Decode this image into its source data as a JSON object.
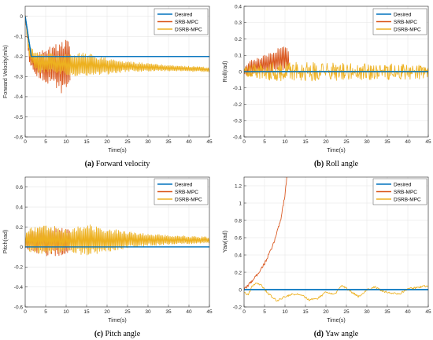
{
  "colors": {
    "desired": "#0072BD",
    "srb": "#D95319",
    "dsrb": "#EDB120",
    "grid": "#e6e6e6"
  },
  "chart_data": [
    {
      "id": "a",
      "type": "line",
      "caption_tag": "(a)",
      "caption_text": "Forward velocity",
      "xlabel": "Time(s)",
      "ylabel": "Forward Velocity(m/s)",
      "xlim": [
        0,
        45
      ],
      "ylim": [
        -0.6,
        0.05
      ],
      "xticks": [
        0,
        5,
        10,
        15,
        20,
        25,
        30,
        35,
        40,
        45
      ],
      "yticks": [
        0,
        -0.1,
        -0.2,
        -0.3,
        -0.4,
        -0.5,
        -0.6
      ],
      "xtick_labels": [
        "0",
        "5",
        "10",
        "15",
        "20",
        "25",
        "30",
        "35",
        "40",
        "45"
      ],
      "ytick_labels": [
        "0",
        "-0.1",
        "-0.2",
        "-0.3",
        "-0.4",
        "-0.5",
        "-0.6"
      ],
      "legend_position": "top-right",
      "series": [
        {
          "name": "Desired",
          "color": "#0072BD",
          "kind": "poly",
          "x": [
            0,
            1.5,
            45
          ],
          "y": [
            0,
            -0.2,
            -0.2
          ]
        },
        {
          "name": "SRB-MPC",
          "color": "#D95319",
          "kind": "osc",
          "t0": 0,
          "t1": 11,
          "dt": 0.15,
          "base_t": [
            0,
            1,
            2.5,
            11
          ],
          "base_v": [
            0,
            -0.2,
            -0.24,
            -0.25
          ],
          "amp_t": [
            0,
            1,
            3,
            6,
            10,
            11
          ],
          "amp_v": [
            0.01,
            0.03,
            0.06,
            0.1,
            0.15,
            0.1
          ]
        },
        {
          "name": "DSRB-MPC",
          "color": "#EDB120",
          "kind": "osc",
          "t0": 0,
          "t1": 45,
          "dt": 0.15,
          "base_t": [
            0,
            1,
            3,
            12,
            25,
            45
          ],
          "base_v": [
            0,
            -0.18,
            -0.23,
            -0.24,
            -0.25,
            -0.265
          ],
          "amp_t": [
            0,
            1,
            3,
            8,
            14,
            18,
            25,
            35,
            45
          ],
          "amp_v": [
            0.005,
            0.03,
            0.05,
            0.05,
            0.06,
            0.05,
            0.025,
            0.015,
            0.012
          ]
        }
      ]
    },
    {
      "id": "b",
      "type": "line",
      "caption_tag": "(b)",
      "caption_text": "Roll angle",
      "xlabel": "Time(s)",
      "ylabel": "Roll(rad)",
      "xlim": [
        0,
        45
      ],
      "ylim": [
        -0.4,
        0.4
      ],
      "xticks": [
        0,
        5,
        10,
        15,
        20,
        25,
        30,
        35,
        40,
        45
      ],
      "yticks": [
        0.4,
        0.3,
        0.2,
        0.1,
        0,
        -0.1,
        -0.2,
        -0.3,
        -0.4
      ],
      "xtick_labels": [
        "0",
        "5",
        "10",
        "15",
        "20",
        "25",
        "30",
        "35",
        "40",
        "45"
      ],
      "ytick_labels": [
        "0.4",
        "0.3",
        "0.2",
        "0.1",
        "0",
        "-0.1",
        "-0.2",
        "-0.3",
        "-0.4"
      ],
      "legend_position": "top-right",
      "series": [
        {
          "name": "Desired",
          "color": "#0072BD",
          "kind": "poly",
          "x": [
            0,
            45
          ],
          "y": [
            0,
            0
          ]
        },
        {
          "name": "SRB-MPC",
          "color": "#D95319",
          "kind": "osc",
          "t0": 0,
          "t1": 11,
          "dt": 0.18,
          "base_t": [
            0,
            1,
            5,
            9,
            10,
            11
          ],
          "base_v": [
            0,
            0.02,
            0.04,
            0.07,
            0.08,
            0.06
          ],
          "amp_t": [
            0,
            1,
            5,
            10,
            11
          ],
          "amp_v": [
            0.02,
            0.05,
            0.06,
            0.09,
            0.06
          ]
        },
        {
          "name": "DSRB-MPC",
          "color": "#EDB120",
          "kind": "noise",
          "t0": 0,
          "t1": 45,
          "dt": 0.12,
          "base_t": [
            0,
            45
          ],
          "base_v": [
            0,
            0
          ],
          "amp_t": [
            0,
            2,
            10,
            45
          ],
          "amp_v": [
            0.02,
            0.05,
            0.06,
            0.045
          ]
        }
      ]
    },
    {
      "id": "c",
      "type": "line",
      "caption_tag": "(c)",
      "caption_text": "Pitch angle",
      "xlabel": "Time(s)",
      "ylabel": "Pitch(rad)",
      "xlim": [
        0,
        45
      ],
      "ylim": [
        -0.6,
        0.7
      ],
      "xticks": [
        0,
        5,
        10,
        15,
        20,
        25,
        30,
        35,
        40,
        45
      ],
      "yticks": [
        0.6,
        0.4,
        0.2,
        0,
        -0.2,
        -0.4,
        -0.6
      ],
      "xtick_labels": [
        "0",
        "5",
        "10",
        "15",
        "20",
        "25",
        "30",
        "35",
        "40",
        "45"
      ],
      "ytick_labels": [
        "0.6",
        "0.4",
        "0.2",
        "0",
        "-0.2",
        "-0.4",
        "-0.6"
      ],
      "legend_position": "top-right",
      "series": [
        {
          "name": "Desired",
          "color": "#0072BD",
          "kind": "poly",
          "x": [
            0,
            45
          ],
          "y": [
            0,
            0
          ]
        },
        {
          "name": "SRB-MPC",
          "color": "#D95319",
          "kind": "osc",
          "t0": 0,
          "t1": 11,
          "dt": 0.15,
          "base_t": [
            0,
            11
          ],
          "base_v": [
            0.06,
            0.06
          ],
          "amp_t": [
            0,
            1,
            5,
            8,
            11
          ],
          "amp_v": [
            0.06,
            0.1,
            0.15,
            0.15,
            0.12
          ]
        },
        {
          "name": "DSRB-MPC",
          "color": "#EDB120",
          "kind": "osc",
          "t0": 0,
          "t1": 45,
          "dt": 0.15,
          "base_t": [
            0,
            45
          ],
          "base_v": [
            0.07,
            0.07
          ],
          "amp_t": [
            0,
            1,
            6,
            10,
            15,
            20,
            30,
            45
          ],
          "amp_v": [
            0.08,
            0.12,
            0.15,
            0.11,
            0.16,
            0.12,
            0.06,
            0.03
          ]
        }
      ]
    },
    {
      "id": "d",
      "type": "line",
      "caption_tag": "(d)",
      "caption_text": "Yaw angle",
      "xlabel": "Time(s)",
      "ylabel": "Yaw(rad)",
      "xlim": [
        0,
        45
      ],
      "ylim": [
        -0.2,
        1.3
      ],
      "xticks": [
        0,
        5,
        10,
        15,
        20,
        25,
        30,
        35,
        40,
        45
      ],
      "yticks": [
        1.2,
        1,
        0.8,
        0.6,
        0.4,
        0.2,
        0,
        -0.2
      ],
      "xtick_labels": [
        "0",
        "5",
        "10",
        "15",
        "20",
        "25",
        "30",
        "35",
        "40",
        "45"
      ],
      "ytick_labels": [
        "1.2",
        "1",
        "0.8",
        "0.6",
        "0.4",
        "0.2",
        "0",
        "-0.2"
      ],
      "legend_position": "top-right",
      "series": [
        {
          "name": "Desired",
          "color": "#0072BD",
          "kind": "poly",
          "x": [
            0,
            45
          ],
          "y": [
            0,
            0
          ]
        },
        {
          "name": "SRB-MPC",
          "color": "#D95319",
          "kind": "noise",
          "t0": 0,
          "t1": 10.5,
          "dt": 0.12,
          "base_t": [
            0,
            1,
            3,
            5,
            7,
            9,
            10,
            10.5
          ],
          "base_v": [
            0,
            0.05,
            0.16,
            0.3,
            0.5,
            0.82,
            1.1,
            1.32
          ],
          "amp_t": [
            0,
            10.5
          ],
          "amp_v": [
            0.015,
            0.02
          ]
        },
        {
          "name": "DSRB-MPC",
          "color": "#EDB120",
          "kind": "noise",
          "t0": 0,
          "t1": 45,
          "dt": 0.15,
          "base_t": [
            0,
            1,
            2,
            3,
            4,
            6,
            8,
            10,
            12,
            14,
            16,
            18,
            20,
            22,
            24,
            26,
            28,
            30,
            32,
            34,
            36,
            38,
            40,
            42,
            44,
            45
          ],
          "base_v": [
            -0.03,
            -0.06,
            0.04,
            0.08,
            0.06,
            -0.05,
            -0.13,
            -0.08,
            -0.05,
            -0.06,
            -0.12,
            -0.1,
            -0.03,
            -0.06,
            0.05,
            -0.02,
            -0.08,
            0,
            0.03,
            -0.02,
            -0.04,
            -0.05,
            0.01,
            0.02,
            0.04,
            0.03
          ],
          "amp_t": [
            0,
            45
          ],
          "amp_v": [
            0.012,
            0.012
          ]
        }
      ]
    }
  ]
}
